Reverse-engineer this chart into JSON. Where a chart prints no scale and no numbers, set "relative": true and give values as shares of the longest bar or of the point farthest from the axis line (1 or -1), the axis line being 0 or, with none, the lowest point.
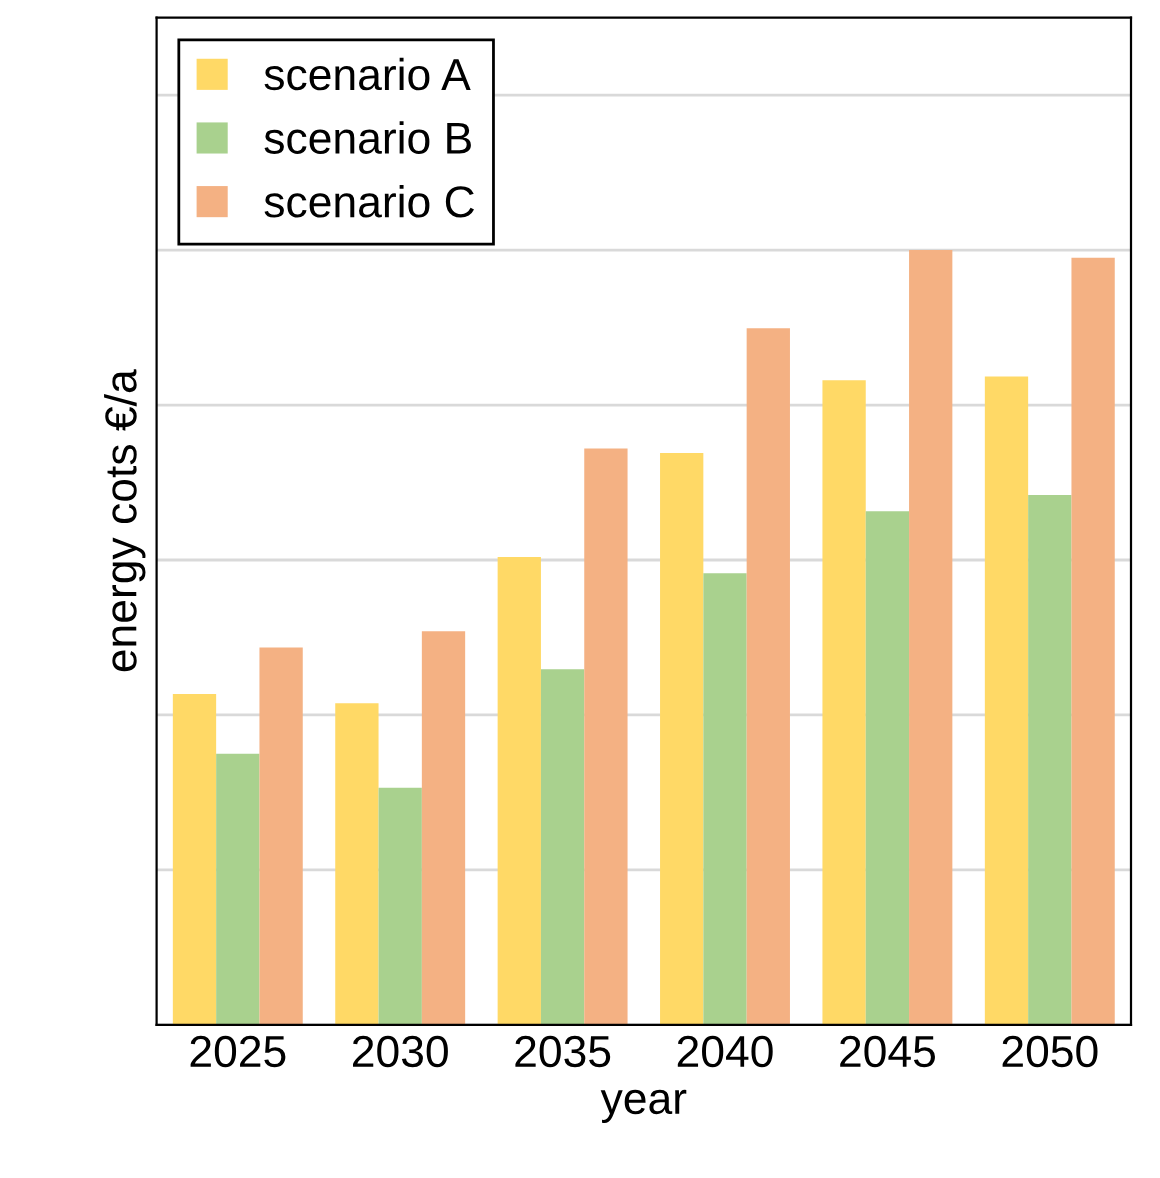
{
  "chart_data": {
    "type": "bar",
    "relative": true,
    "xlabel": "year",
    "ylabel": "energy cots €/a",
    "categories": [
      "2025",
      "2030",
      "2035",
      "2040",
      "2045",
      "2050"
    ],
    "series": [
      {
        "name": "scenario A",
        "color": "#ffd966",
        "values": [
          0.427,
          0.415,
          0.604,
          0.738,
          0.832,
          0.837
        ]
      },
      {
        "name": "scenario B",
        "color": "#a9d18e",
        "values": [
          0.35,
          0.306,
          0.459,
          0.583,
          0.663,
          0.684
        ]
      },
      {
        "name": "scenario C",
        "color": "#f4b183",
        "values": [
          0.487,
          0.508,
          0.744,
          0.899,
          1,
          0.99
        ]
      }
    ],
    "grid": "y",
    "legend": "top left"
  }
}
